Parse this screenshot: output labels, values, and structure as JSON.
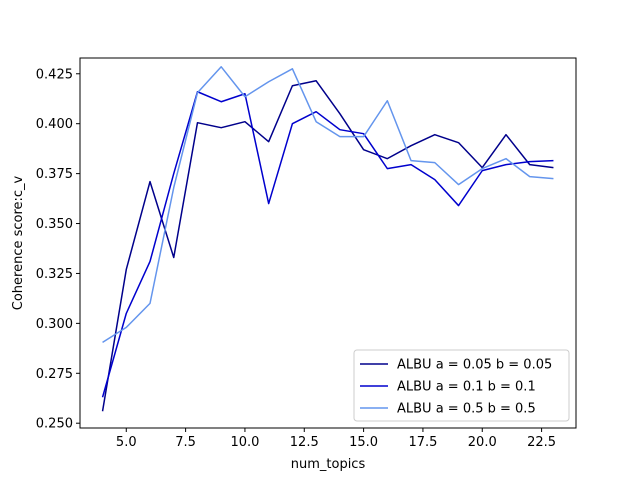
{
  "chart_data": {
    "type": "line",
    "title": "",
    "xlabel": "num_topics",
    "ylabel": "Coherence score:c_v",
    "xlim": [
      3.05,
      23.95
    ],
    "ylim": [
      0.2476,
      0.4329
    ],
    "xticks": [
      5.0,
      7.5,
      10.0,
      12.5,
      15.0,
      17.5,
      20.0,
      22.5
    ],
    "xtick_labels": [
      "5.0",
      "7.5",
      "10.0",
      "12.5",
      "15.0",
      "17.5",
      "20.0",
      "22.5"
    ],
    "yticks": [
      0.25,
      0.275,
      0.3,
      0.325,
      0.35,
      0.375,
      0.4,
      0.425
    ],
    "ytick_labels": [
      "0.250",
      "0.275",
      "0.300",
      "0.325",
      "0.350",
      "0.375",
      "0.400",
      "0.425"
    ],
    "grid": false,
    "legend_position": "lower-right",
    "x": [
      4,
      5,
      6,
      7,
      8,
      9,
      10,
      11,
      12,
      13,
      14,
      15,
      16,
      17,
      18,
      19,
      20,
      21,
      22,
      23
    ],
    "series": [
      {
        "name": "ALBU a = 0.05 b = 0.05",
        "color": "#00008b",
        "values": [
          0.256,
          0.327,
          0.371,
          0.333,
          0.4005,
          0.398,
          0.401,
          0.391,
          0.419,
          0.4215,
          0.405,
          0.387,
          0.3825,
          0.389,
          0.3945,
          0.3905,
          0.378,
          0.3945,
          0.3795,
          0.378
        ]
      },
      {
        "name": "ALBU a = 0.1 b = 0.1",
        "color": "#0000cd",
        "values": [
          0.263,
          0.305,
          0.331,
          0.375,
          0.416,
          0.411,
          0.415,
          0.36,
          0.4,
          0.406,
          0.397,
          0.395,
          0.3775,
          0.3795,
          0.372,
          0.359,
          0.3765,
          0.3795,
          0.381,
          0.3815
        ]
      },
      {
        "name": "ALBU a = 0.5 b = 0.5",
        "color": "#6495ed",
        "values": [
          0.2905,
          0.298,
          0.31,
          0.368,
          0.4155,
          0.4285,
          0.4135,
          0.421,
          0.4275,
          0.401,
          0.3935,
          0.3935,
          0.4115,
          0.3815,
          0.3805,
          0.3695,
          0.3775,
          0.3825,
          0.3735,
          0.3725
        ]
      }
    ]
  }
}
